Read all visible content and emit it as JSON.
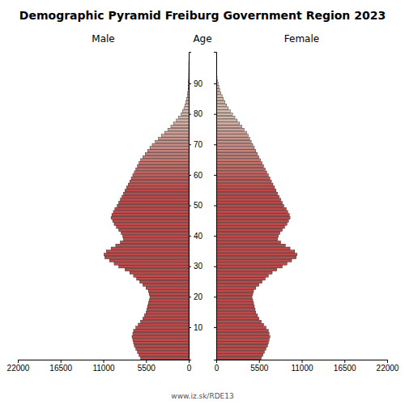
{
  "chart_data": {
    "type": "bar",
    "orientation": "horizontal",
    "title": "Demographic Pyramid Freiburg Government Region 2023",
    "ylabel": "Age",
    "annotations": [
      "www.iz.sk/RDE13"
    ],
    "grid": false,
    "categories": [
      null,
      null,
      null,
      null,
      null,
      null,
      null,
      null,
      null,
      null,
      "10",
      null,
      null,
      null,
      null,
      null,
      null,
      null,
      null,
      null,
      "20",
      null,
      null,
      null,
      null,
      null,
      null,
      null,
      null,
      null,
      "30",
      null,
      null,
      null,
      null,
      null,
      null,
      null,
      null,
      null,
      "40",
      null,
      null,
      null,
      null,
      null,
      null,
      null,
      null,
      null,
      "50",
      null,
      null,
      null,
      null,
      null,
      null,
      null,
      null,
      null,
      "60",
      null,
      null,
      null,
      null,
      null,
      null,
      null,
      null,
      null,
      "70",
      null,
      null,
      null,
      null,
      null,
      null,
      null,
      null,
      null,
      "80",
      null,
      null,
      null,
      null,
      null,
      null,
      null,
      null,
      null,
      "90",
      null,
      null,
      null,
      null,
      null,
      null,
      null,
      null,
      null,
      null
    ],
    "series": [
      {
        "name": "Male",
        "values": [
          6200,
          6400,
          6600,
          6800,
          7000,
          7100,
          7200,
          7300,
          7200,
          7100,
          6800,
          6500,
          6200,
          5900,
          5700,
          5500,
          5400,
          5300,
          5200,
          5100,
          5000,
          5100,
          5200,
          5500,
          5900,
          6300,
          6700,
          7100,
          7600,
          8200,
          9000,
          9600,
          10200,
          10800,
          10900,
          10600,
          10000,
          9400,
          8800,
          8400,
          8500,
          8700,
          9000,
          9300,
          9600,
          9800,
          10000,
          9900,
          9700,
          9500,
          9200,
          9000,
          8800,
          8600,
          8400,
          8200,
          8000,
          7800,
          7600,
          7400,
          7200,
          7000,
          6800,
          6600,
          6400,
          6200,
          5900,
          5600,
          5300,
          5000,
          4700,
          4300,
          3900,
          3500,
          3100,
          2700,
          2300,
          1950,
          1600,
          1300,
          1000,
          800,
          620,
          480,
          360,
          265,
          190,
          135,
          93,
          62,
          41,
          26,
          16,
          10,
          6,
          3,
          2,
          1,
          0,
          0,
          0
        ]
      },
      {
        "name": "Female",
        "values": [
          5800,
          6000,
          6200,
          6400,
          6600,
          6700,
          6800,
          6900,
          6800,
          6700,
          6400,
          6100,
          5800,
          5500,
          5300,
          5100,
          5000,
          4900,
          4800,
          4700,
          4600,
          4700,
          4800,
          5100,
          5500,
          5900,
          6300,
          6700,
          7200,
          7800,
          8500,
          9100,
          9700,
          10300,
          10400,
          10100,
          9500,
          8900,
          8300,
          7900,
          8000,
          8200,
          8500,
          8800,
          9100,
          9300,
          9500,
          9400,
          9200,
          9000,
          8700,
          8500,
          8300,
          8100,
          7900,
          7700,
          7500,
          7300,
          7100,
          6900,
          6700,
          6500,
          6300,
          6100,
          5900,
          5700,
          5500,
          5300,
          5100,
          4900,
          4700,
          4500,
          4300,
          4100,
          3900,
          3600,
          3300,
          3000,
          2700,
          2400,
          2100,
          1800,
          1550,
          1340,
          1130,
          930,
          760,
          590,
          450,
          330,
          230,
          155,
          100,
          62,
          37,
          21,
          11,
          5,
          2,
          1,
          0
        ]
      }
    ],
    "colors": [
      "#bc4a4a",
      "#bc4a4a",
      "#bc4a4a",
      "#bc4a4a",
      "#bc4a4a",
      "#bc4a4a",
      "#bc4a4a",
      "#bc4a4a",
      "#bc4a4a",
      "#bc4a4a",
      "#bc4a4a",
      "#bc4a4a",
      "#bc4a4a",
      "#bc4a4a",
      "#bc4a4a",
      "#bc4a4a",
      "#bc4a4a",
      "#bc4a4a",
      "#bc4a4a",
      "#bc4a4a",
      "#bc4a4a",
      "#bc4a4a",
      "#bc4a4a",
      "#bc4a4a",
      "#bc4a4a",
      "#bc4a4a",
      "#bc4a4a",
      "#bc4a4a",
      "#bc4a4a",
      "#bc4a4a",
      "#bc4a4a",
      "#bc4a4a",
      "#bc4a4a",
      "#bc4a4a",
      "#bc4a4a",
      "#bc4a4a",
      "#bc4a4a",
      "#bc4a4a",
      "#bc4a4a",
      "#bc4a4a",
      "#bc4a4a",
      "#bc4a4a",
      "#bc4a4a",
      "#bc4a4a",
      "#bc4a4a",
      "#bc4a4a",
      "#bc4a4a",
      "#bc4a4a",
      "#bc4a4a",
      "#bc4a4a",
      "#bc4a4a",
      "#bc4a4a",
      "#bc4a4a",
      "#bc4a4a",
      "#bc4a4a",
      "#bc4a4a",
      "#bd4e4e",
      "#be5352",
      "#bf5756",
      "#c05c5a",
      "#c0605e",
      "#c16562",
      "#c26965",
      "#c36e69",
      "#c4726d",
      "#c57671",
      "#c67b75",
      "#c77f79",
      "#c7847d",
      "#c88881",
      "#c98d85",
      "#ca9189",
      "#cb958d",
      "#cc9a91",
      "#cd9e94",
      "#cea398",
      "#cea79c",
      "#cfaca0",
      "#d0b0a4",
      "#d1b5a8",
      "#d2b9ac",
      "#d2b9ac",
      "#d2b9ac",
      "#d2b9ac",
      "#d2b9ac",
      "#d2b9ac",
      "#d2b9ac",
      "#d2b9ac",
      "#d2b9ac",
      "#d2b9ac",
      "#d2b9ac",
      "#d2b9ac",
      "#d2b9ac",
      "#d2b9ac",
      "#d2b9ac",
      "#d2b9ac",
      "#d2b9ac",
      "#d2b9ac",
      "#d2b9ac",
      "#d2b9ac",
      "#d2b9ac"
    ],
    "xlim": [
      0,
      22000
    ],
    "xticks": [
      0,
      5500,
      11000,
      16500,
      22000
    ]
  }
}
